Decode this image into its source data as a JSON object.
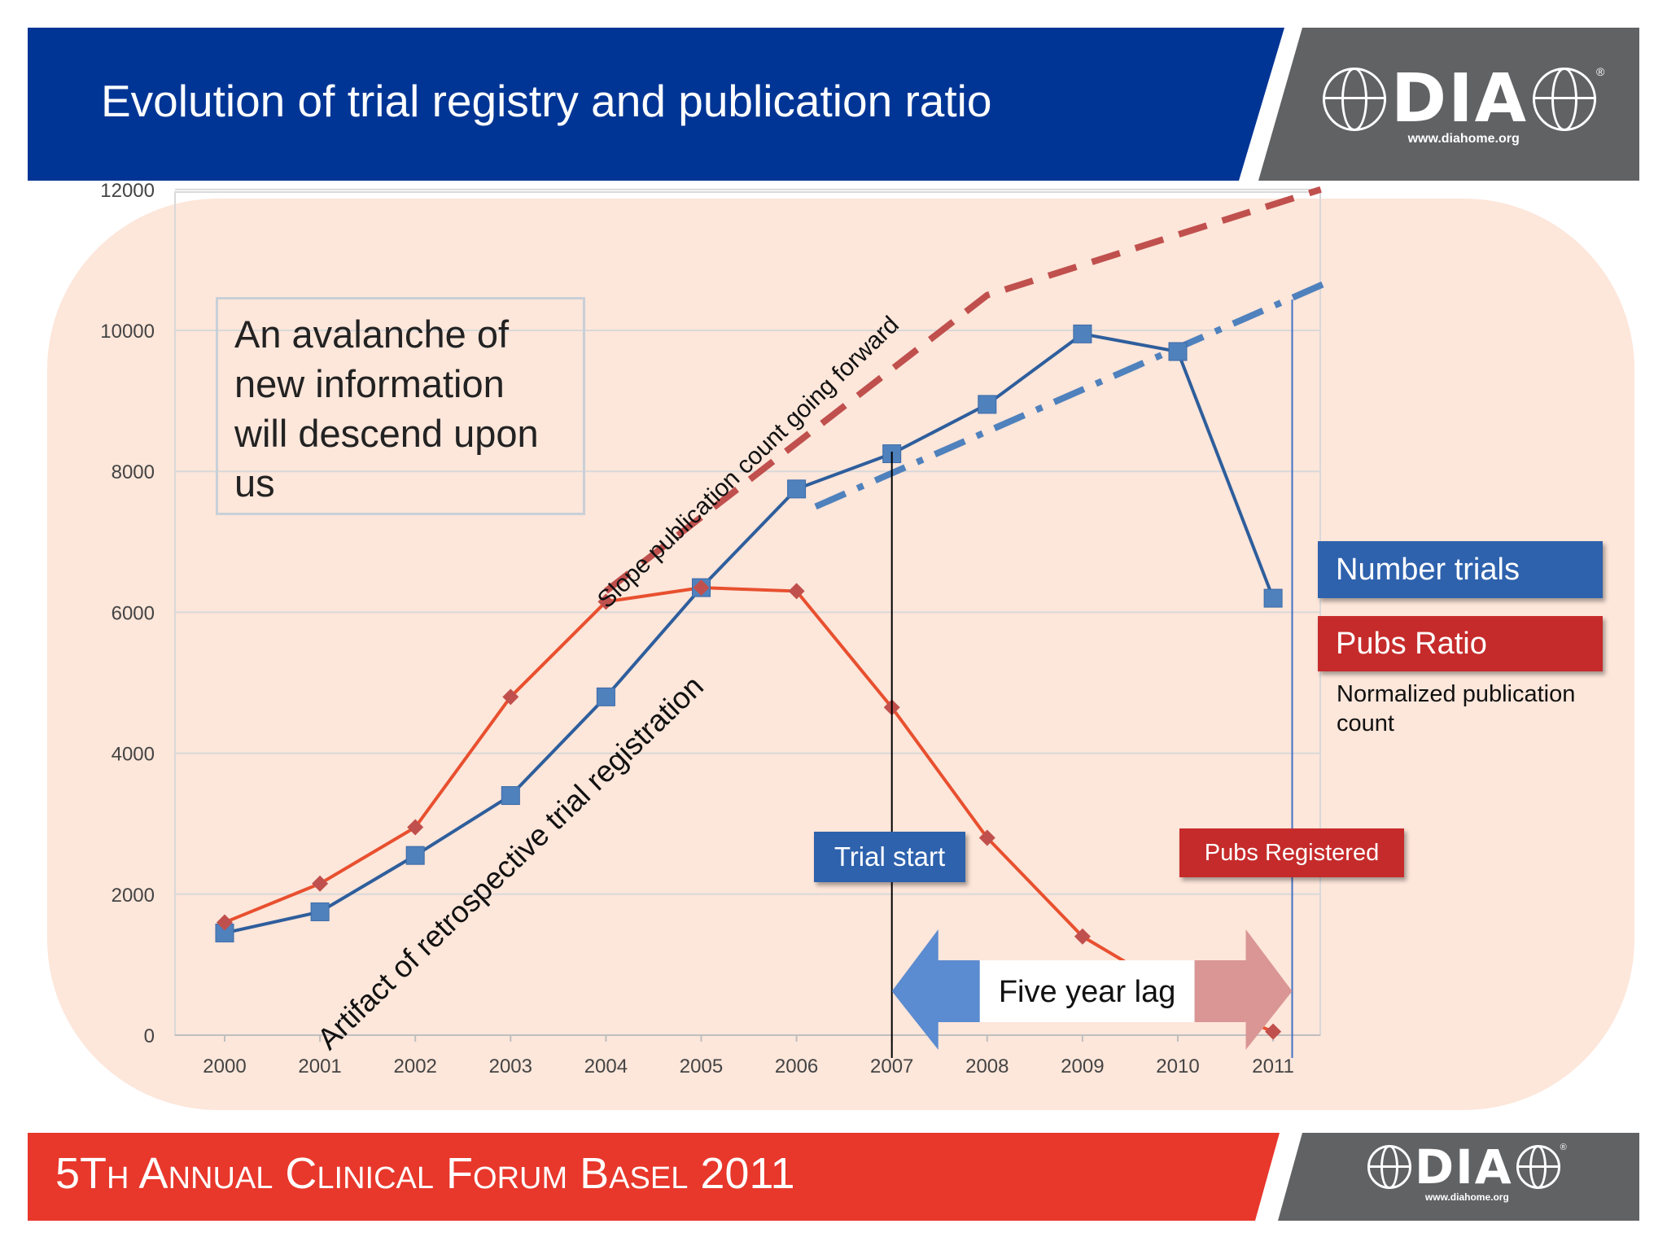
{
  "slide": {
    "title": "Evolution of trial registry and publication ratio",
    "header_color": "#003595",
    "footer_color": "#e8372b",
    "logo_panel_color": "#616264"
  },
  "logo": {
    "wordmark": "DIA",
    "url": "www.diahome.org",
    "registered": "®"
  },
  "footer": {
    "prefix": "5",
    "words": [
      {
        "big": "T",
        "small": "H"
      },
      {
        "big": "A",
        "small": "NNUAL"
      },
      {
        "big": "C",
        "small": "LINICAL"
      },
      {
        "big": "F",
        "small": "ORUM"
      },
      {
        "big": "B",
        "small": "ASEL"
      }
    ],
    "year": "2011"
  },
  "quote": {
    "lines": [
      "An avalanche of",
      "new information",
      "will descend upon",
      "us"
    ]
  },
  "annotations": {
    "slope": "Slope publication count going forward",
    "artifact": "Artifact of retrospective trial registration",
    "trial_start": "Trial start",
    "pubs_registered": "Pubs Registered",
    "five_year_lag": "Five year lag",
    "normalized_note": "Normalized publication count"
  },
  "legend": {
    "number_trials": "Number trials",
    "pubs_ratio": "Pubs Ratio"
  },
  "colors": {
    "trials": "#2e5e9c",
    "trials_marker": "#4f81bd",
    "pubs": "#e8502f",
    "pubs_marker": "#c0504d",
    "slope_red": "#c0504d",
    "slope_blue": "#4f81bd",
    "background_blob": "#fde6da",
    "arrow_blue": "#5b8bd0",
    "arrow_pink": "#d99694",
    "callout_blue": "#2e62ad",
    "callout_red": "#c62b2b"
  },
  "chart_data": {
    "type": "line",
    "categories": [
      "2000",
      "2001",
      "2002",
      "2003",
      "2004",
      "2005",
      "2006",
      "2007",
      "2008",
      "2009",
      "2010",
      "2011"
    ],
    "y_ticks": [
      "0",
      "2000",
      "4000",
      "6000",
      "8000",
      "10000",
      "12000"
    ],
    "ylim": [
      0,
      12000
    ],
    "grid": true,
    "series": [
      {
        "name": "Number trials",
        "marker": "square",
        "values": [
          1450,
          1750,
          2550,
          3400,
          4800,
          6350,
          7750,
          8250,
          8950,
          9950,
          9700,
          6200
        ]
      },
      {
        "name": "Pubs Ratio",
        "marker": "diamond",
        "values": [
          1600,
          2150,
          2950,
          4800,
          6150,
          6350,
          6300,
          4650,
          2800,
          1400,
          600,
          50
        ]
      }
    ],
    "trend_lines": [
      {
        "style": "dashed-red",
        "points": [
          [
            2004,
            6300
          ],
          [
            2008,
            10500
          ],
          [
            2011.5,
            12000
          ]
        ]
      },
      {
        "style": "dash-dot-blue",
        "points": [
          [
            2006.2,
            7500
          ],
          [
            2011.6,
            10700
          ]
        ]
      }
    ],
    "markers": [
      {
        "label": "Trial start",
        "x": 2007
      },
      {
        "label": "Pubs Registered",
        "x": 2011.2
      }
    ],
    "annotation_arrow": {
      "label": "Five year lag",
      "from": 2007,
      "to": 2011.2
    }
  }
}
